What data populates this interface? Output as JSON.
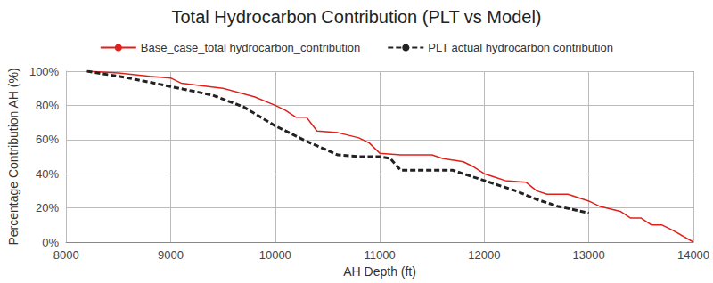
{
  "chart_data": {
    "type": "line",
    "title": "Total Hydrocarbon Contribution (PLT vs Model)",
    "x_label": "AH Depth (ft)",
    "y_label": "Percentage Contribution AH (%)",
    "xlim": [
      8000,
      14000
    ],
    "xticks": [
      8000,
      9000,
      10000,
      11000,
      12000,
      13000,
      14000
    ],
    "ylim": [
      0,
      100
    ],
    "yticks": [
      {
        "value": 0,
        "label": "0%"
      },
      {
        "value": 20,
        "label": "20%"
      },
      {
        "value": 40,
        "label": "40%"
      },
      {
        "value": 60,
        "label": "60%"
      },
      {
        "value": 80,
        "label": "80%"
      },
      {
        "value": 100,
        "label": "100%"
      }
    ],
    "grid": true,
    "legend": "top",
    "series": [
      {
        "name": "Base_case_total hydrocarbon_contribution",
        "color": "#e0201b",
        "line_style": "solid",
        "marker": "none",
        "x": [
          8200,
          8500,
          8800,
          9000,
          9100,
          9500,
          9800,
          10000,
          10100,
          10200,
          10300,
          10400,
          10600,
          10800,
          10900,
          11000,
          11200,
          11500,
          11600,
          11800,
          11900,
          12000,
          12100,
          12200,
          12400,
          12500,
          12600,
          12800,
          13000,
          13100,
          13300,
          13400,
          13500,
          13600,
          13700,
          13800,
          14000
        ],
        "values": [
          100,
          99,
          97,
          96,
          93,
          90,
          85,
          80,
          77,
          73,
          73,
          65,
          64,
          61,
          58,
          52,
          51,
          51,
          49,
          47,
          44,
          40,
          38,
          36,
          35,
          30,
          28,
          28,
          24,
          21,
          18,
          14,
          14,
          10,
          10,
          7,
          0
        ]
      },
      {
        "name": "PLT actual hydrocarbon contribution",
        "color": "#222222",
        "line_style": "dashed",
        "marker": "none",
        "x": [
          8200,
          8600,
          9000,
          9400,
          9700,
          10000,
          10300,
          10600,
          10800,
          11000,
          11100,
          11200,
          11700,
          12000,
          12300,
          12500,
          12700,
          13000
        ],
        "values": [
          100,
          96,
          91,
          86,
          79,
          68,
          59,
          51,
          50,
          50,
          49,
          42,
          42,
          36,
          30,
          25,
          21,
          17
        ]
      }
    ]
  }
}
